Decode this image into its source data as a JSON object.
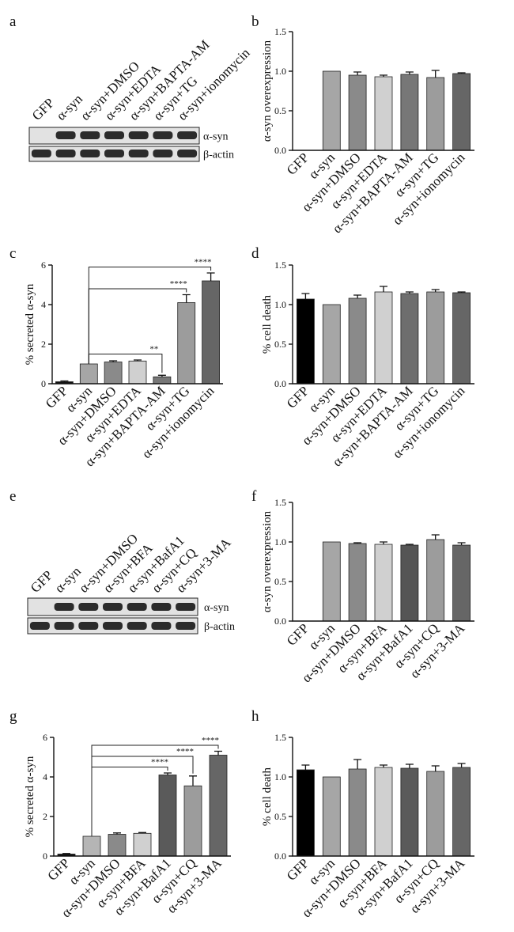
{
  "blots": [
    {
      "panel": "a",
      "lanes": [
        "GFP",
        "α-syn",
        "α-syn+DMSO",
        "α-syn+EDTA",
        "α-syn+BAPTA-AM",
        "α-syn+TG",
        "α-syn+ionomycin"
      ],
      "rows": [
        {
          "label": "α-syn",
          "bands": [
            0,
            1,
            1,
            1,
            1,
            1,
            1
          ]
        },
        {
          "label": "β-actin",
          "bands": [
            1,
            1,
            1,
            1,
            1,
            1,
            1
          ]
        }
      ]
    },
    {
      "panel": "e",
      "lanes": [
        "GFP",
        "α-syn",
        "α-syn+DMSO",
        "α-syn+BFA",
        "α-syn+BafA1",
        "α-syn+CQ",
        "α-syn+3-MA"
      ],
      "rows": [
        {
          "label": "α-syn",
          "bands": [
            0,
            1,
            1,
            1,
            1,
            1,
            1
          ]
        },
        {
          "label": "β-actin",
          "bands": [
            1,
            1,
            1,
            1,
            1,
            1,
            1
          ]
        }
      ]
    }
  ],
  "chart_data": [
    {
      "panel": "b",
      "type": "bar",
      "categories": [
        "GFP",
        "α-syn",
        "α-syn+DMSO",
        "α-syn+EDTA",
        "α-syn+BAPTA-AM",
        "α-syn+TG",
        "α-syn+ionomycin"
      ],
      "values": [
        0,
        1.0,
        0.95,
        0.93,
        0.96,
        0.92,
        0.97
      ],
      "errors": [
        0,
        0,
        0.04,
        0.02,
        0.03,
        0.09,
        0.01
      ],
      "colors": [
        "#000000",
        "#a6a6a6",
        "#8a8a8a",
        "#d0d0d0",
        "#777777",
        "#9c9c9c",
        "#666666"
      ],
      "ylabel": "α-syn overexpression",
      "ylim": [
        0,
        1.5
      ],
      "yticks": [
        0,
        0.5,
        1.0,
        1.5
      ],
      "ytick_labels": [
        "0.0",
        "0.5",
        "1.0",
        "1.5"
      ],
      "annotations": []
    },
    {
      "panel": "c",
      "type": "bar",
      "categories": [
        "GFP",
        "α-syn",
        "α-syn+DMSO",
        "α-syn+EDTA",
        "α-syn+BAPTA-AM",
        "α-syn+TG",
        "α-syn+ionomycin"
      ],
      "values": [
        0.1,
        1.0,
        1.1,
        1.15,
        0.35,
        4.1,
        5.2
      ],
      "errors": [
        0.04,
        0,
        0.06,
        0.05,
        0.08,
        0.4,
        0.4
      ],
      "colors": [
        "#111111",
        "#a6a6a6",
        "#8a8a8a",
        "#d0d0d0",
        "#777777",
        "#9c9c9c",
        "#666666"
      ],
      "ylabel": "% secreted α-syn",
      "ylim": [
        0,
        6
      ],
      "yticks": [
        0,
        2,
        4,
        6
      ],
      "ytick_labels": [
        "0",
        "2",
        "4",
        "6"
      ],
      "annotations": [
        {
          "from": 1,
          "to": 4,
          "label": "**"
        },
        {
          "from": 1,
          "to": 5,
          "label": "****"
        },
        {
          "from": 1,
          "to": 6,
          "label": "****"
        }
      ]
    },
    {
      "panel": "d",
      "type": "bar",
      "categories": [
        "GFP",
        "α-syn",
        "α-syn+DMSO",
        "α-syn+EDTA",
        "α-syn+BAPTA-AM",
        "α-syn+TG",
        "α-syn+ionomycin"
      ],
      "values": [
        1.07,
        1.0,
        1.08,
        1.16,
        1.14,
        1.16,
        1.15
      ],
      "errors": [
        0.07,
        0,
        0.04,
        0.07,
        0.02,
        0.03,
        0.01
      ],
      "colors": [
        "#000000",
        "#a6a6a6",
        "#8a8a8a",
        "#d0d0d0",
        "#6e6e6e",
        "#9c9c9c",
        "#666666"
      ],
      "ylabel": "% cell death",
      "ylim": [
        0,
        1.5
      ],
      "yticks": [
        0,
        0.5,
        1.0,
        1.5
      ],
      "ytick_labels": [
        "0.0",
        "0.5",
        "1.0",
        "1.5"
      ],
      "annotations": []
    },
    {
      "panel": "f",
      "type": "bar",
      "categories": [
        "GFP",
        "α-syn",
        "α-syn+DMSO",
        "α-syn+BFA",
        "α-syn+BafA1",
        "α-syn+CQ",
        "α-syn+3-MA"
      ],
      "values": [
        0,
        1.0,
        0.98,
        0.97,
        0.96,
        1.03,
        0.96
      ],
      "errors": [
        0,
        0,
        0.01,
        0.03,
        0.01,
        0.06,
        0.03
      ],
      "colors": [
        "#000000",
        "#a6a6a6",
        "#8a8a8a",
        "#d0d0d0",
        "#555555",
        "#9c9c9c",
        "#666666"
      ],
      "ylabel": "α-syn overexpression",
      "ylim": [
        0,
        1.5
      ],
      "yticks": [
        0,
        0.5,
        1.0,
        1.5
      ],
      "ytick_labels": [
        "0.0",
        "0.5",
        "1.0",
        "1.5"
      ],
      "annotations": []
    },
    {
      "panel": "g",
      "type": "bar",
      "categories": [
        "GFP",
        "α-syn",
        "α-syn+DMSO",
        "α-syn+BFA",
        "α-syn+BafA1",
        "α-syn+CQ",
        "α-syn+3-MA"
      ],
      "values": [
        0.1,
        1.0,
        1.1,
        1.15,
        4.1,
        3.55,
        5.1
      ],
      "errors": [
        0.03,
        0,
        0.07,
        0.04,
        0.1,
        0.5,
        0.2
      ],
      "colors": [
        "#111111",
        "#b5b5b5",
        "#8a8a8a",
        "#d0d0d0",
        "#5a5a5a",
        "#9c9c9c",
        "#666666"
      ],
      "ylabel": "% secreted α-syn",
      "ylim": [
        0,
        6
      ],
      "yticks": [
        0,
        2,
        4,
        6
      ],
      "ytick_labels": [
        "0",
        "2",
        "4",
        "6"
      ],
      "annotations": [
        {
          "from": 1,
          "to": 4,
          "label": "****"
        },
        {
          "from": 1,
          "to": 5,
          "label": "****"
        },
        {
          "from": 1,
          "to": 6,
          "label": "****"
        }
      ]
    },
    {
      "panel": "h",
      "type": "bar",
      "categories": [
        "GFP",
        "α-syn",
        "α-syn+DMSO",
        "α-syn+BFA",
        "α-syn+BafA1",
        "α-syn+CQ",
        "α-syn+3-MA"
      ],
      "values": [
        1.09,
        1.0,
        1.1,
        1.12,
        1.11,
        1.07,
        1.12
      ],
      "errors": [
        0.06,
        0,
        0.12,
        0.03,
        0.05,
        0.07,
        0.05
      ],
      "colors": [
        "#000000",
        "#a6a6a6",
        "#8a8a8a",
        "#d0d0d0",
        "#5a5a5a",
        "#9c9c9c",
        "#666666"
      ],
      "ylabel": "% cell death",
      "ylim": [
        0,
        1.5
      ],
      "yticks": [
        0,
        0.5,
        1.0,
        1.5
      ],
      "ytick_labels": [
        "0.0",
        "0.5",
        "1.0",
        "1.5"
      ],
      "annotations": []
    }
  ]
}
